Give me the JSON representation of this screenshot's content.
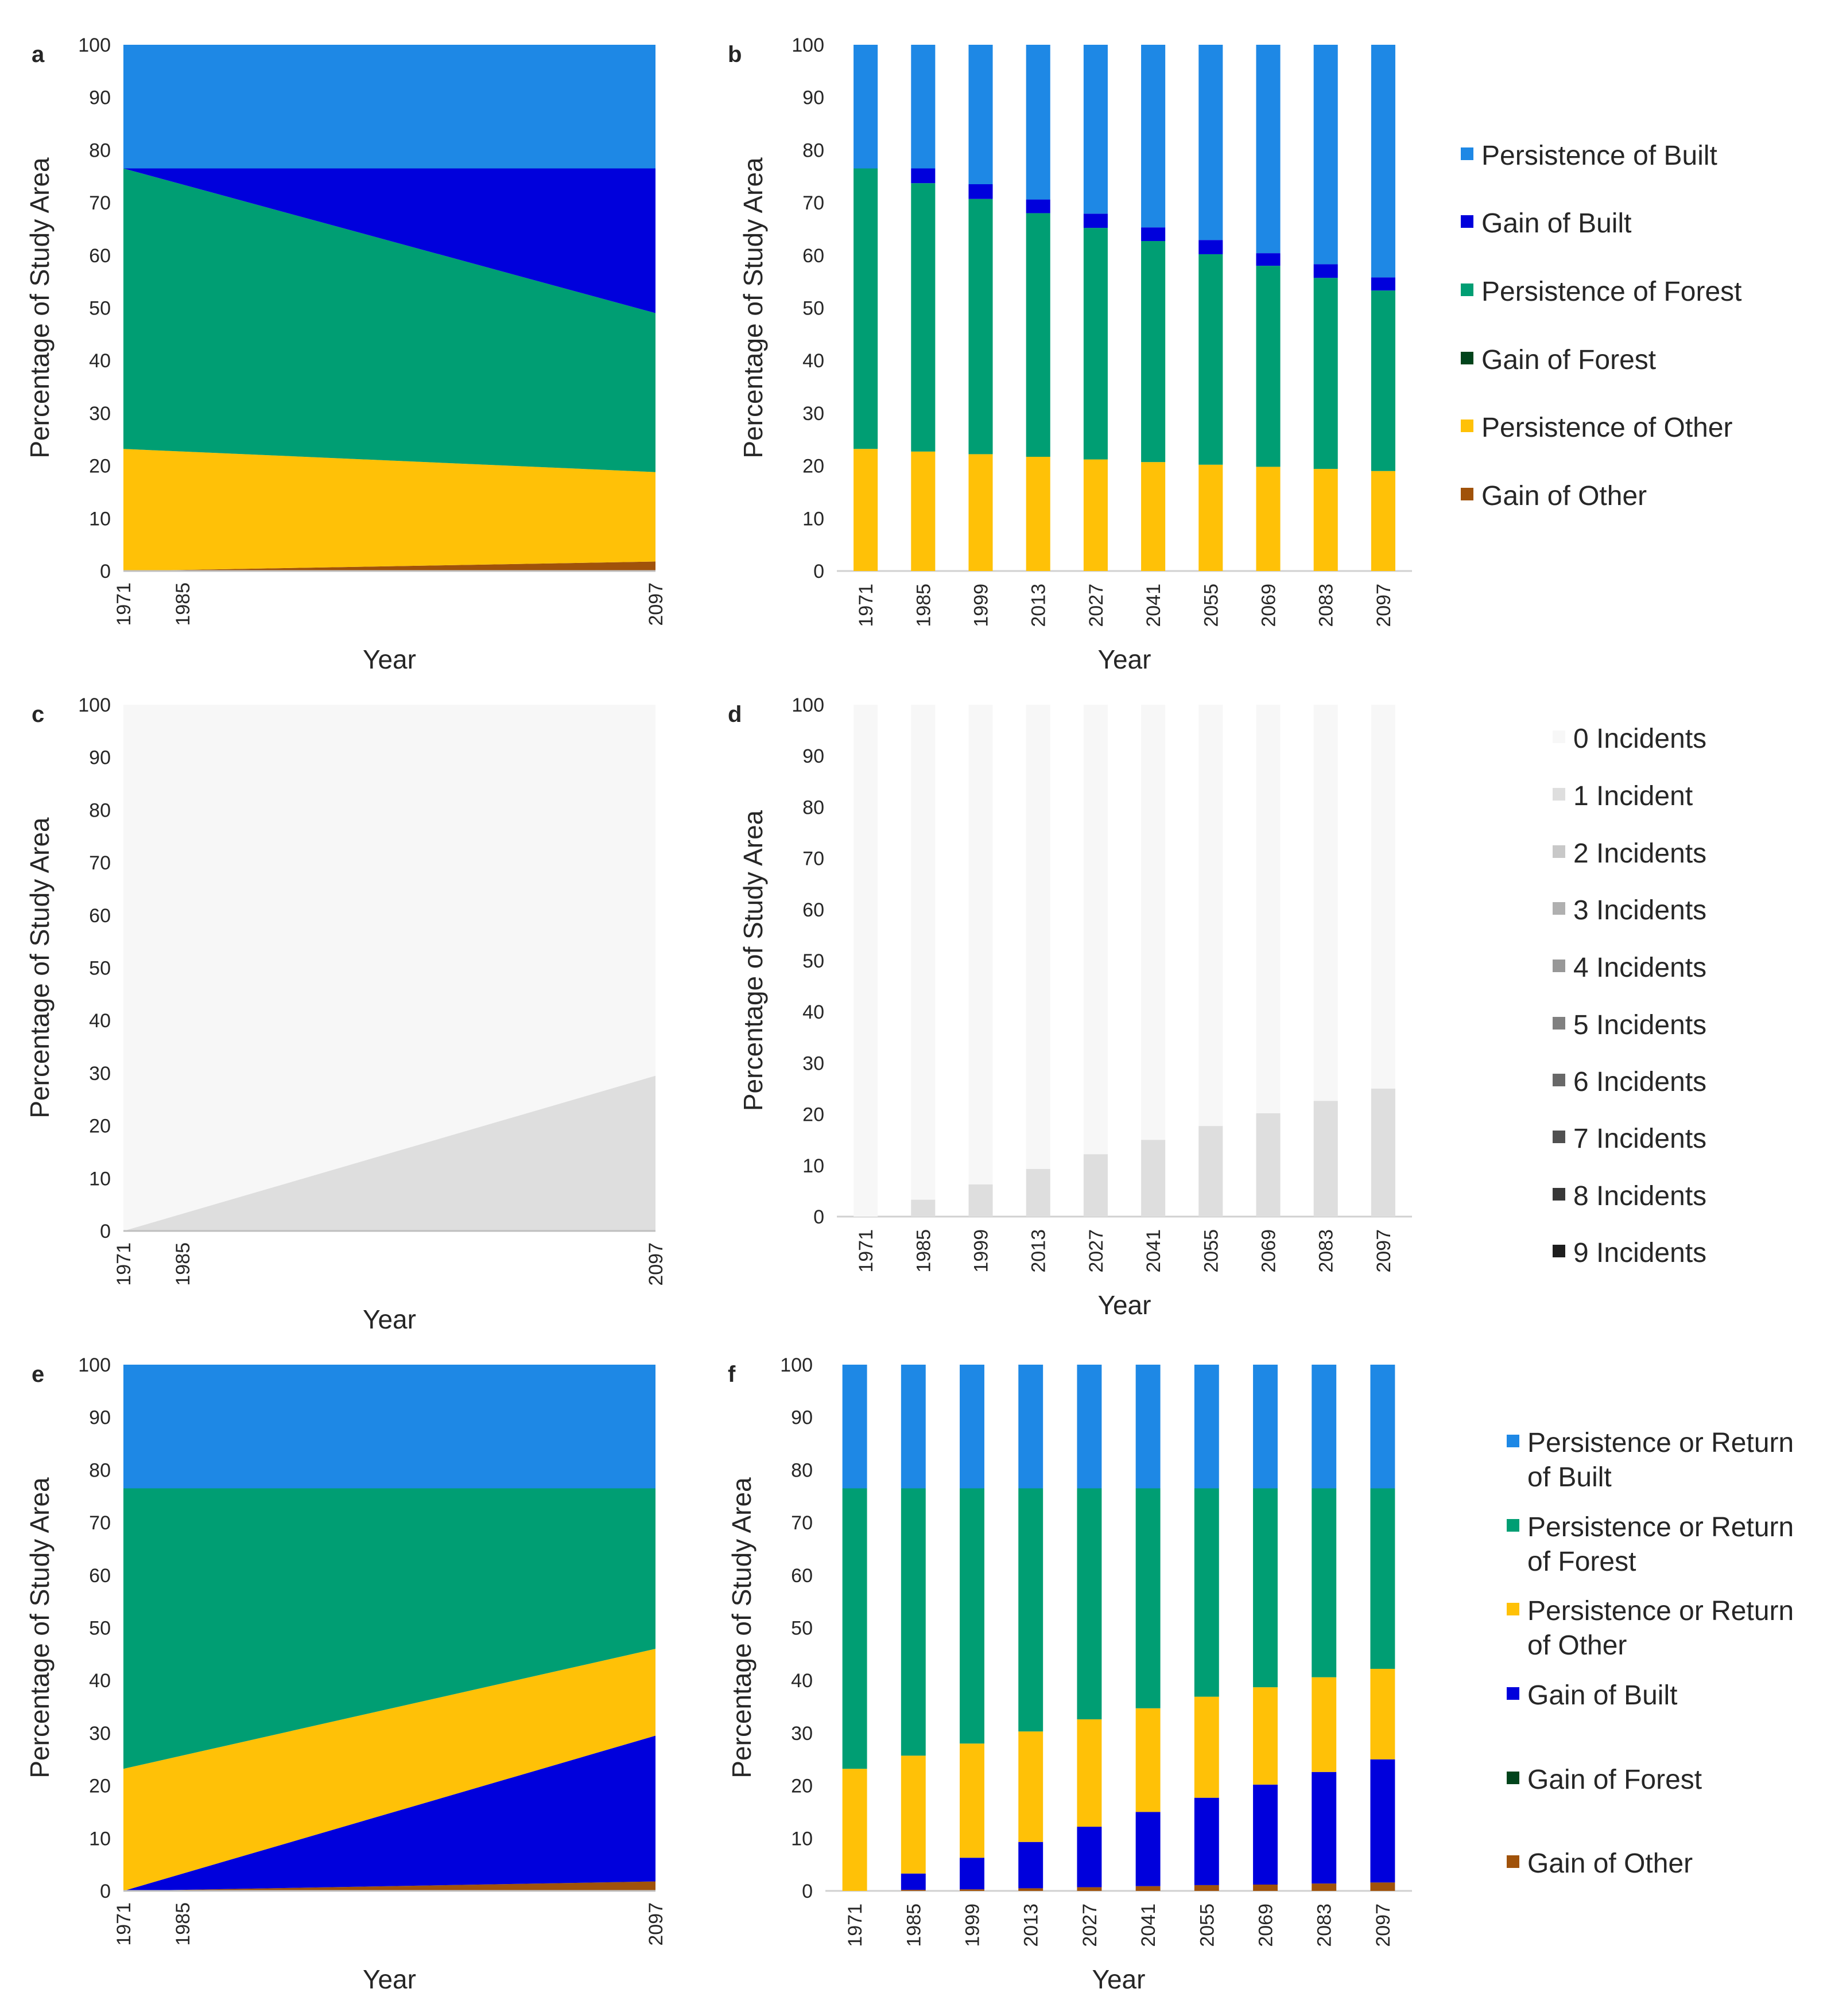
{
  "figure": {
    "panel_letters": [
      "a",
      "b",
      "c",
      "d",
      "e",
      "f"
    ]
  },
  "colors": {
    "persistence_built": "#1E88E5",
    "gain_built": "#0000DC",
    "persistence_forest": "#009E73",
    "gain_forest": "#00441B",
    "persistence_other": "#FFC107",
    "gain_other": "#A0520A",
    "incidents": [
      "#F7F7F7",
      "#DEDEDE",
      "#C8C8C8",
      "#B0B0B0",
      "#989898",
      "#808080",
      "#686868",
      "#505050",
      "#383838",
      "#1E1E1E"
    ]
  },
  "legends": {
    "top": [
      "Persistence of Built",
      "Gain of Built",
      "Persistence of Forest",
      "Gain of Forest",
      "Persistence of Other",
      "Gain of Other"
    ],
    "middle": [
      "0 Incidents",
      "1 Incident",
      "2 Incidents",
      "3 Incidents",
      "4 Incidents",
      "5 Incidents",
      "6 Incidents",
      "7 Incidents",
      "8 Incidents",
      "9 Incidents"
    ],
    "bottom": [
      [
        "Persistence or Return",
        "of Built"
      ],
      [
        "Persistence or Return",
        "of Forest"
      ],
      [
        "Persistence or Return",
        "of Other"
      ],
      [
        "Gain of Built"
      ],
      [
        "Gain of Forest"
      ],
      [
        "Gain of Other"
      ]
    ]
  },
  "chart_data": [
    {
      "panel": "a",
      "type": "area",
      "stacked": true,
      "xlabel": "Year",
      "ylabel": "Percentage of Study Area",
      "ylim": [
        0,
        100
      ],
      "yticks": [
        0,
        10,
        20,
        30,
        40,
        50,
        60,
        70,
        80,
        90,
        100
      ],
      "xticks": [
        "1971",
        "1985",
        "2097"
      ],
      "x": [
        1971,
        2097
      ],
      "series": [
        {
          "name": "Gain of Other",
          "color_key": "gain_other",
          "values": [
            0,
            1.8
          ]
        },
        {
          "name": "Persistence of Other",
          "color_key": "persistence_other",
          "values": [
            23.2,
            17.0
          ]
        },
        {
          "name": "Gain of Forest",
          "color_key": "gain_forest",
          "values": [
            0,
            0
          ]
        },
        {
          "name": "Persistence of Forest",
          "color_key": "persistence_forest",
          "values": [
            53.3,
            30.2
          ]
        },
        {
          "name": "Gain of Built",
          "color_key": "gain_built",
          "values": [
            0,
            27.5
          ]
        },
        {
          "name": "Persistence of Built",
          "color_key": "persistence_built",
          "values": [
            23.5,
            23.5
          ]
        }
      ]
    },
    {
      "panel": "b",
      "type": "bar",
      "stacked": true,
      "xlabel": "Year",
      "ylabel": "Percentage of Study Area",
      "ylim": [
        0,
        100
      ],
      "yticks": [
        0,
        10,
        20,
        30,
        40,
        50,
        60,
        70,
        80,
        90,
        100
      ],
      "categories": [
        "1971",
        "1985",
        "1999",
        "2013",
        "2027",
        "2041",
        "2055",
        "2069",
        "2083",
        "2097"
      ],
      "series": [
        {
          "name": "Gain of Other",
          "color_key": "gain_other",
          "values": [
            0,
            0,
            0,
            0,
            0,
            0,
            0,
            0,
            0,
            0
          ]
        },
        {
          "name": "Persistence of Other",
          "color_key": "persistence_other",
          "values": [
            23.2,
            22.7,
            22.2,
            21.7,
            21.2,
            20.7,
            20.2,
            19.8,
            19.4,
            19.0
          ]
        },
        {
          "name": "Gain of Forest",
          "color_key": "gain_forest",
          "values": [
            0,
            0,
            0,
            0,
            0,
            0,
            0,
            0,
            0,
            0
          ]
        },
        {
          "name": "Persistence of Forest",
          "color_key": "persistence_forest",
          "values": [
            53.3,
            51.0,
            48.5,
            46.3,
            44.0,
            42.0,
            40.0,
            38.2,
            36.3,
            34.3
          ]
        },
        {
          "name": "Gain of Built",
          "color_key": "gain_built",
          "values": [
            0,
            2.8,
            2.8,
            2.6,
            2.7,
            2.6,
            2.7,
            2.4,
            2.6,
            2.5
          ]
        },
        {
          "name": "Persistence of Built",
          "color_key": "persistence_built",
          "values": [
            23.5,
            23.5,
            26.5,
            29.4,
            32.1,
            34.7,
            37.1,
            39.6,
            41.7,
            44.2
          ]
        }
      ]
    },
    {
      "panel": "c",
      "type": "area",
      "stacked": true,
      "xlabel": "Year",
      "ylabel": "Percentage of Study Area",
      "ylim": [
        0,
        100
      ],
      "yticks": [
        0,
        10,
        20,
        30,
        40,
        50,
        60,
        70,
        80,
        90,
        100
      ],
      "xticks": [
        "1971",
        "1985",
        "2097"
      ],
      "x": [
        1971,
        2097
      ],
      "series": [
        {
          "name": "1 Incident",
          "color_index": 1,
          "values": [
            0,
            29.5
          ]
        },
        {
          "name": "0 Incidents",
          "color_index": 0,
          "values": [
            100,
            70.5
          ]
        }
      ]
    },
    {
      "panel": "d",
      "type": "bar",
      "stacked": true,
      "xlabel": "Year",
      "ylabel": "Percentage of Study Area",
      "ylim": [
        0,
        100
      ],
      "yticks": [
        0,
        10,
        20,
        30,
        40,
        50,
        60,
        70,
        80,
        90,
        100
      ],
      "categories": [
        "1971",
        "1985",
        "1999",
        "2013",
        "2027",
        "2041",
        "2055",
        "2069",
        "2083",
        "2097"
      ],
      "series": [
        {
          "name": "1 Incident",
          "color_index": 1,
          "values": [
            0,
            3.3,
            6.3,
            9.3,
            12.2,
            15.0,
            17.7,
            20.2,
            22.6,
            25.0
          ]
        },
        {
          "name": "0 Incidents",
          "color_index": 0,
          "values": [
            100,
            96.7,
            93.7,
            90.7,
            87.8,
            85.0,
            82.3,
            79.8,
            77.4,
            75.0
          ]
        }
      ]
    },
    {
      "panel": "e",
      "type": "area",
      "stacked": true,
      "xlabel": "Year",
      "ylabel": "Percentage of Study Area",
      "ylim": [
        0,
        100
      ],
      "yticks": [
        0,
        10,
        20,
        30,
        40,
        50,
        60,
        70,
        80,
        90,
        100
      ],
      "xticks": [
        "1971",
        "1985",
        "2097"
      ],
      "x": [
        1971,
        2097
      ],
      "series": [
        {
          "name": "Gain of Other",
          "color_key": "gain_other",
          "values": [
            0,
            1.8
          ]
        },
        {
          "name": "Gain of Forest",
          "color_key": "gain_forest",
          "values": [
            0,
            0
          ]
        },
        {
          "name": "Gain of Built",
          "color_key": "gain_built",
          "values": [
            0,
            27.7
          ]
        },
        {
          "name": "Persistence or Return of Other",
          "color_key": "persistence_other",
          "values": [
            23.2,
            16.5
          ]
        },
        {
          "name": "Persistence or Return of Forest",
          "color_key": "persistence_forest",
          "values": [
            53.3,
            30.5
          ]
        },
        {
          "name": "Persistence or Return of Built",
          "color_key": "persistence_built",
          "values": [
            23.5,
            23.5
          ]
        }
      ]
    },
    {
      "panel": "f",
      "type": "bar",
      "stacked": true,
      "xlabel": "Year",
      "ylabel": "Percentage of Study Area",
      "ylim": [
        0,
        100
      ],
      "yticks": [
        0,
        10,
        20,
        30,
        40,
        50,
        60,
        70,
        80,
        90,
        100
      ],
      "categories": [
        "1971",
        "1985",
        "1999",
        "2013",
        "2027",
        "2041",
        "2055",
        "2069",
        "2083",
        "2097"
      ],
      "series": [
        {
          "name": "Gain of Other",
          "color_key": "gain_other",
          "values": [
            0,
            0.2,
            0.3,
            0.5,
            0.7,
            0.9,
            1.1,
            1.2,
            1.4,
            1.6
          ]
        },
        {
          "name": "Gain of Forest",
          "color_key": "gain_forest",
          "values": [
            0,
            0,
            0,
            0,
            0,
            0,
            0,
            0,
            0,
            0
          ]
        },
        {
          "name": "Gain of Built",
          "color_key": "gain_built",
          "values": [
            0,
            3.1,
            6.0,
            8.8,
            11.5,
            14.1,
            16.6,
            19.0,
            21.2,
            23.4
          ]
        },
        {
          "name": "Persistence or Return of Other",
          "color_key": "persistence_other",
          "values": [
            23.2,
            22.4,
            21.7,
            21.0,
            20.4,
            19.7,
            19.2,
            18.5,
            18.0,
            17.2
          ]
        },
        {
          "name": "Persistence or Return of Forest",
          "color_key": "persistence_forest",
          "values": [
            53.3,
            50.8,
            48.5,
            46.2,
            43.9,
            41.8,
            39.6,
            37.8,
            35.9,
            34.3
          ]
        },
        {
          "name": "Persistence or Return of Built",
          "color_key": "persistence_built",
          "values": [
            23.5,
            23.5,
            23.5,
            23.5,
            23.5,
            23.5,
            23.5,
            23.5,
            23.5,
            23.5
          ]
        }
      ]
    }
  ]
}
